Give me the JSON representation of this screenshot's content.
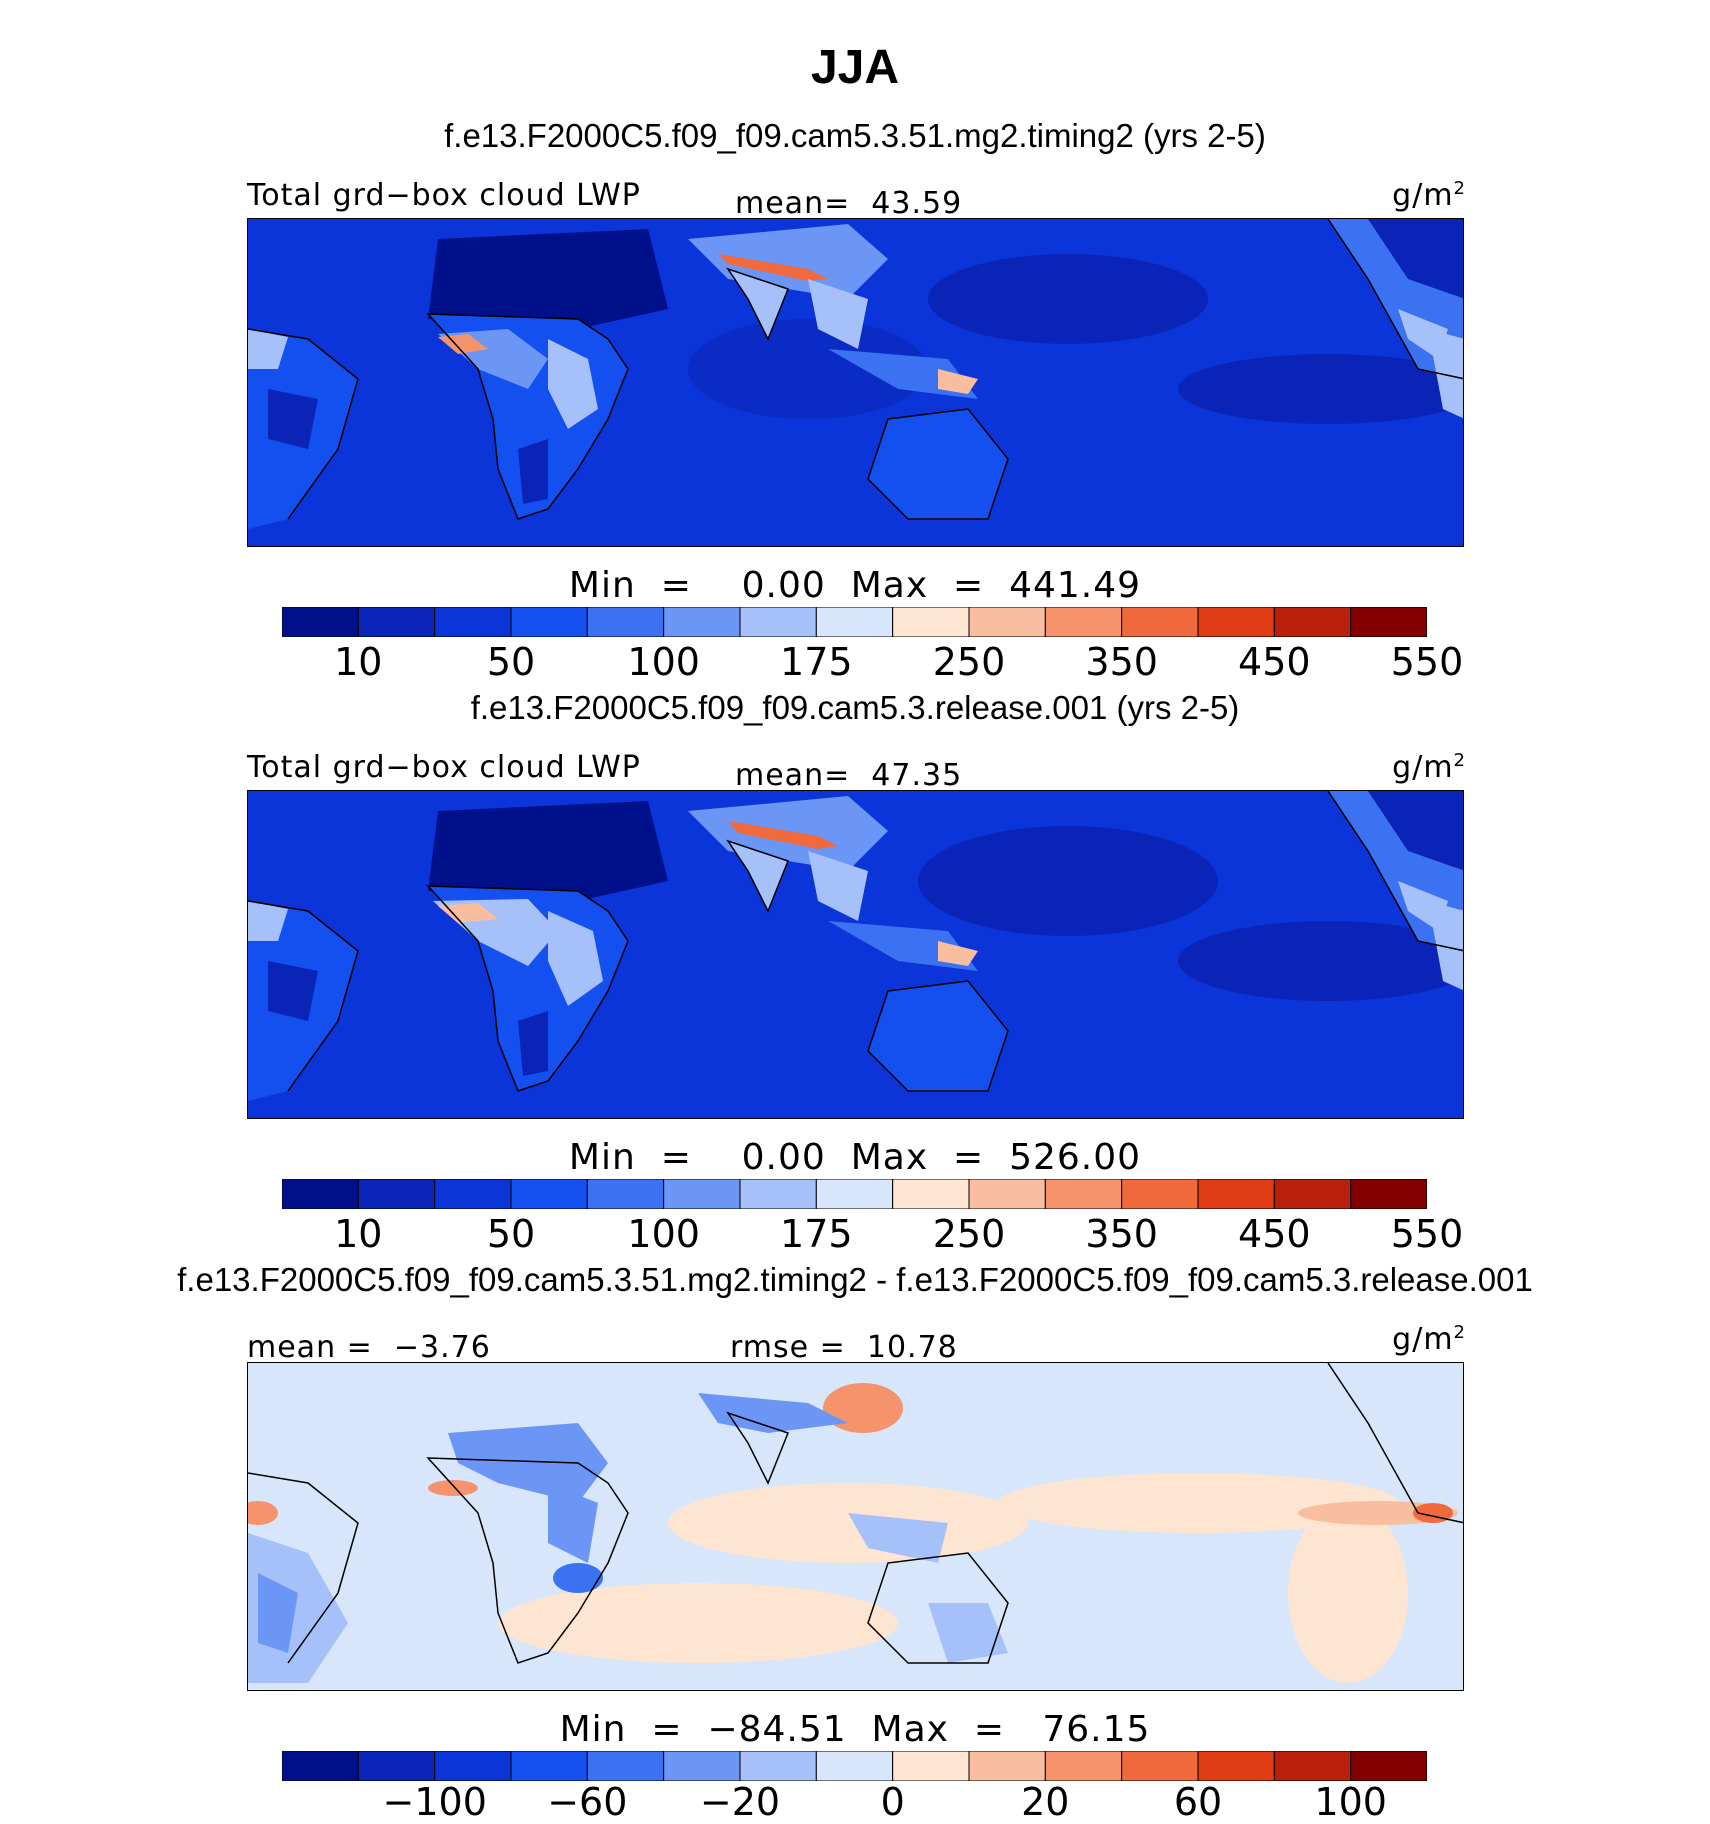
{
  "title": "JJA",
  "colors": {
    "scale": [
      "#000f8a",
      "#0a24b8",
      "#0b35d8",
      "#1450f0",
      "#3a72f2",
      "#6b96f5",
      "#a6c1f9",
      "#d7e6fb",
      "#fde5d1",
      "#f9bea0",
      "#f5946c",
      "#f06a3e",
      "#e03d17",
      "#b9200b",
      "#820000"
    ],
    "ocean": "#0b35d8",
    "coast": "#000000"
  },
  "panels": [
    {
      "title": "f.e13.F2000C5.f09_f09.cam5.3.51.mg2.timing2 (yrs 2-5)",
      "variable": "Total grd−box cloud LWP",
      "mean_label": "mean=",
      "mean_value": "43.59",
      "units": "g/m",
      "units_sup": "2",
      "min_label": "Min",
      "eq": "=",
      "min_value": "0.00",
      "max_label": "Max",
      "max_value": "441.49",
      "ticks": [
        "10",
        "50",
        "100",
        "175",
        "250",
        "350",
        "450",
        "550"
      ]
    },
    {
      "title": "f.e13.F2000C5.f09_f09.cam5.3.release.001 (yrs 2-5)",
      "variable": "Total grd−box cloud LWP",
      "mean_label": "mean=",
      "mean_value": "47.35",
      "units": "g/m",
      "units_sup": "2",
      "min_label": "Min",
      "eq": "=",
      "min_value": "0.00",
      "max_label": "Max",
      "max_value": "526.00",
      "ticks": [
        "10",
        "50",
        "100",
        "175",
        "250",
        "350",
        "450",
        "550"
      ]
    },
    {
      "title": "f.e13.F2000C5.f09_f09.cam5.3.51.mg2.timing2 - f.e13.F2000C5.f09_f09.cam5.3.release.001",
      "mean_label": "mean =",
      "mean_value": "−3.76",
      "rmse_label": "rmse =",
      "rmse_value": "10.78",
      "units": "g/m",
      "units_sup": "2",
      "min_label": "Min",
      "eq": "=",
      "min_value": "−84.51",
      "max_label": "Max",
      "max_value": "76.15",
      "ticks": [
        "−100",
        "−60",
        "−20",
        "0",
        "20",
        "60",
        "100"
      ]
    }
  ]
}
